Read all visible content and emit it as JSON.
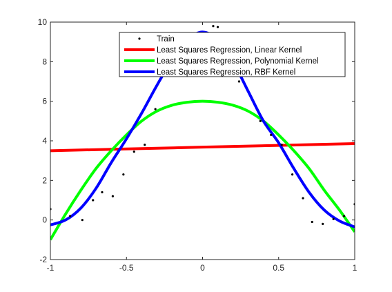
{
  "chart_data": {
    "type": "line",
    "title": "",
    "xlabel": "",
    "ylabel": "",
    "xlim": [
      -1,
      1
    ],
    "ylim": [
      -2,
      10
    ],
    "xticks": [
      -1,
      -0.5,
      0,
      0.5,
      1
    ],
    "yticks": [
      -2,
      0,
      2,
      4,
      6,
      8,
      10
    ],
    "xtick_labels": [
      "-1",
      "-0.5",
      "0",
      "0.5",
      "1"
    ],
    "ytick_labels": [
      "-2",
      "0",
      "2",
      "4",
      "6",
      "8",
      "10"
    ],
    "grid": false,
    "legend_position": "top-right",
    "series": [
      {
        "name": "Train",
        "kind": "scatter",
        "color": "#000000",
        "x": [
          -1.0,
          -0.87,
          -0.79,
          -0.72,
          -0.66,
          -0.59,
          -0.52,
          -0.45,
          -0.38,
          -0.31,
          0.07,
          0.1,
          0.24,
          0.38,
          0.45,
          0.52,
          0.59,
          0.66,
          0.72,
          0.79,
          0.86,
          0.93,
          1.0
        ],
        "y": [
          0.55,
          0.2,
          0.0,
          1.0,
          1.4,
          1.2,
          2.3,
          3.45,
          3.8,
          5.6,
          9.8,
          9.75,
          7.0,
          5.0,
          4.3,
          3.8,
          2.3,
          1.1,
          -0.1,
          -0.2,
          0.05,
          0.2,
          0.8
        ]
      },
      {
        "name": "Least Squares Regression, Linear Kernel",
        "kind": "line",
        "color": "#ff0000",
        "x": [
          -1,
          -0.5,
          0,
          0.5,
          1
        ],
        "y": [
          3.5,
          3.59,
          3.68,
          3.77,
          3.86
        ]
      },
      {
        "name": "Least Squares Regression, Polynomial Kernel",
        "kind": "line",
        "color": "#00ff00",
        "x": [
          -1,
          -0.9,
          -0.8,
          -0.7,
          -0.6,
          -0.5,
          -0.4,
          -0.3,
          -0.2,
          -0.1,
          0,
          0.1,
          0.2,
          0.3,
          0.4,
          0.5,
          0.6,
          0.7,
          0.8,
          0.9,
          1
        ],
        "y": [
          -1.0,
          0.3,
          1.5,
          2.6,
          3.5,
          4.3,
          5.0,
          5.5,
          5.8,
          5.95,
          6.0,
          5.95,
          5.8,
          5.5,
          5.0,
          4.3,
          3.5,
          2.6,
          1.5,
          0.5,
          -0.6
        ]
      },
      {
        "name": "Least Squares Regression, RBF Kernel",
        "kind": "line",
        "color": "#0000ff",
        "x": [
          -1,
          -0.9,
          -0.8,
          -0.7,
          -0.6,
          -0.5,
          -0.4,
          -0.3,
          -0.2,
          -0.1,
          0,
          0.1,
          0.2,
          0.3,
          0.4,
          0.5,
          0.6,
          0.7,
          0.8,
          0.9,
          1
        ],
        "y": [
          -0.25,
          0.0,
          0.6,
          1.6,
          2.9,
          4.1,
          5.4,
          6.8,
          8.1,
          9.1,
          9.5,
          9.1,
          8.0,
          6.5,
          5.0,
          3.9,
          2.6,
          1.4,
          0.5,
          -0.05,
          -0.35
        ]
      }
    ]
  }
}
